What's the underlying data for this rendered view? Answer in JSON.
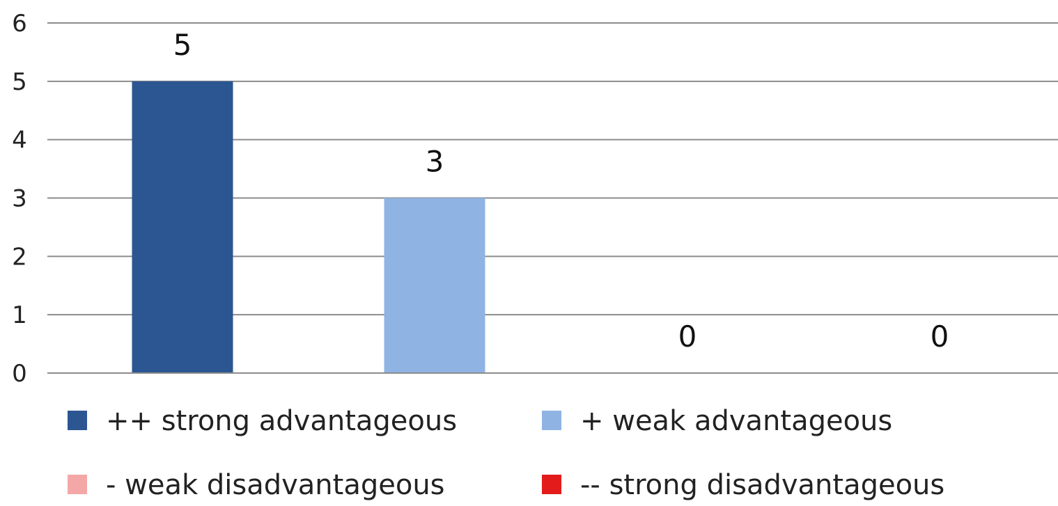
{
  "chart_data": {
    "type": "bar",
    "categories": [
      "++ strong advantageous",
      "+ weak advantageous",
      "- weak disadvantageous",
      "-- strong disadvantageous"
    ],
    "values": [
      5,
      3,
      0,
      0
    ],
    "colors": [
      "#2b5691",
      "#8fb4e3",
      "#f4a7a7",
      "#e31b1b"
    ],
    "ylim": [
      0,
      6
    ],
    "yticks": [
      "0",
      "1",
      "2",
      "3",
      "4",
      "5",
      "6"
    ],
    "data_labels": [
      "5",
      "3",
      "0",
      "0"
    ],
    "grid": true,
    "legend_position": "bottom",
    "legend": [
      {
        "label": "++ strong advantageous",
        "color": "#2b5691"
      },
      {
        "label": "+ weak advantageous",
        "color": "#8fb4e3"
      },
      {
        "label": "- weak disadvantageous",
        "color": "#f4a7a7"
      },
      {
        "label": "-- strong disadvantageous",
        "color": "#e31b1b"
      }
    ]
  }
}
